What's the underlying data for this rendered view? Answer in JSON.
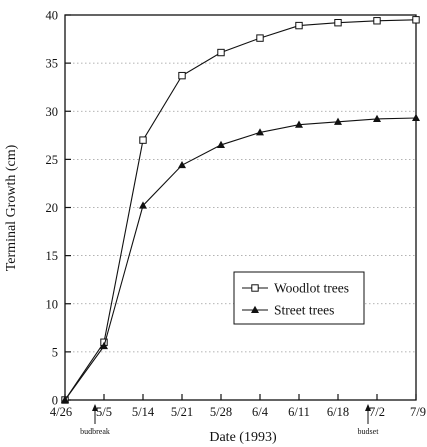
{
  "chart_data": {
    "type": "line",
    "xlabel": "Date (1993)",
    "ylabel": "Terminal Growth (cm)",
    "x": [
      "4/26",
      "5/5",
      "5/14",
      "5/21",
      "5/28",
      "6/4",
      "6/11",
      "6/18",
      "7/2",
      "7/9"
    ],
    "ylim": [
      0,
      40
    ],
    "y_ticks": [
      0,
      5,
      10,
      15,
      20,
      25,
      30,
      35,
      40
    ],
    "grid": "horizontal dotted",
    "legend_position": "right-middle",
    "series": [
      {
        "name": "Woodlot trees",
        "marker": "open-square",
        "values": [
          0,
          6,
          27,
          33.7,
          36.1,
          37.6,
          38.9,
          39.2,
          39.4,
          39.5
        ]
      },
      {
        "name": "Street trees",
        "marker": "filled-triangle",
        "values": [
          0,
          5.6,
          20.2,
          24.4,
          26.5,
          27.8,
          28.6,
          28.9,
          29.2,
          29.3
        ]
      }
    ],
    "annotations": [
      {
        "text": "budbreak",
        "at": "5/5"
      },
      {
        "text": "budset",
        "at": "7/2"
      }
    ]
  }
}
